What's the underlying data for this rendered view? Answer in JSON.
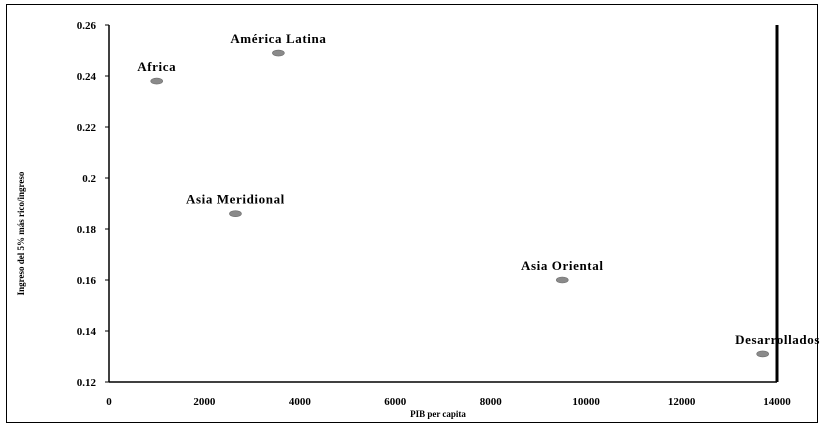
{
  "chart_data": {
    "type": "scatter",
    "xlabel": "PIB per capita",
    "ylabel": "Ingreso del 5% más rico/ingreso",
    "xlim": [
      0,
      14000
    ],
    "ylim": [
      0.12,
      0.26
    ],
    "x_ticks": [
      "0",
      "2000",
      "4000",
      "6000",
      "8000",
      "10000",
      "12000",
      "14000"
    ],
    "y_ticks": [
      "0.12",
      "0.14",
      "0.16",
      "0.18",
      "0.2",
      "0.22",
      "0.24",
      "0.26"
    ],
    "points": [
      {
        "label": "Africa",
        "x": 1000,
        "y": 0.238
      },
      {
        "label": "América Latina",
        "x": 3550,
        "y": 0.249
      },
      {
        "label": "Asia Meridional",
        "x": 2650,
        "y": 0.186
      },
      {
        "label": "Asia Oriental",
        "x": 9500,
        "y": 0.16
      },
      {
        "label": "Desarrollados",
        "x": 13700,
        "y": 0.131
      }
    ],
    "marker_color": "#8a8a8a",
    "grid": false,
    "legend": "none"
  }
}
